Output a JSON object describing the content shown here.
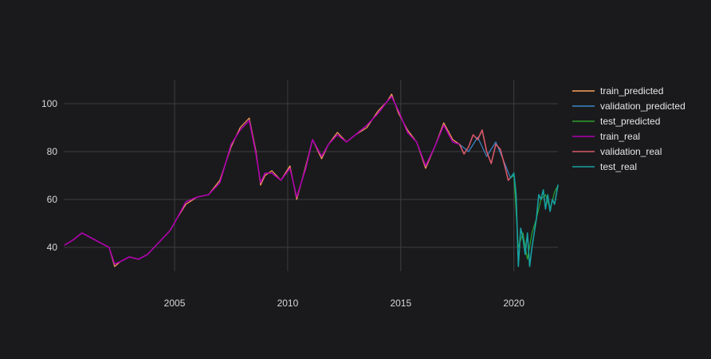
{
  "chart_data": {
    "type": "line",
    "title": "",
    "xlabel": "",
    "ylabel": "",
    "xlim": [
      2000.1,
      2021.95
    ],
    "ylim": [
      30,
      110
    ],
    "x_ticks": [
      2005,
      2010,
      2015,
      2020
    ],
    "x_tick_labels": [
      "2005",
      "2010",
      "2015",
      "2020"
    ],
    "y_ticks": [
      40,
      60,
      80,
      100
    ],
    "y_tick_labels": [
      "40",
      "60",
      "80",
      "100"
    ],
    "grid": true,
    "legend_position": "right",
    "series": [
      {
        "name": "train_predicted",
        "color": "#ffa15a",
        "x": [
          2000.15,
          2000.5,
          2000.9,
          2001.3,
          2001.7,
          2002.1,
          2002.35,
          2002.6,
          2003.0,
          2003.4,
          2003.8,
          2004.3,
          2004.8,
          2005.1,
          2005.5,
          2006.0,
          2006.5,
          2007.0,
          2007.5,
          2007.9,
          2008.3,
          2008.6,
          2008.8,
          2009.0,
          2009.3,
          2009.7,
          2010.1,
          2010.4,
          2010.8,
          2011.1,
          2011.5,
          2011.8,
          2012.2,
          2012.6,
          2013.0,
          2013.5,
          2014.0,
          2014.4,
          2014.6,
          2014.9,
          2015.3,
          2015.7,
          2016.1,
          2016.5,
          2016.9,
          2017.3,
          2017.6
        ],
        "values": [
          41,
          43,
          46,
          44,
          42,
          40,
          32,
          34,
          36,
          35,
          37,
          42,
          47,
          52,
          58,
          61,
          62,
          68,
          82,
          90,
          94,
          80,
          66,
          70,
          72,
          68,
          74,
          60,
          74,
          85,
          77,
          83,
          88,
          84,
          87,
          90,
          97,
          101,
          104,
          96,
          89,
          84,
          73,
          82,
          92,
          85,
          83
        ]
      },
      {
        "name": "validation_predicted",
        "color": "#3a86c8",
        "x": [
          2017.6,
          2018.0,
          2018.4,
          2018.8,
          2019.2,
          2019.6,
          2019.85
        ],
        "values": [
          83,
          80,
          86,
          78,
          84,
          75,
          69
        ]
      },
      {
        "name": "test_predicted",
        "color": "#2ca02c",
        "x": [
          2019.85,
          2020.0,
          2020.2,
          2020.4,
          2020.6,
          2020.8,
          2021.0,
          2021.2,
          2021.4,
          2021.6,
          2021.8,
          2021.9
        ],
        "values": [
          69,
          70,
          40,
          46,
          35,
          46,
          52,
          60,
          62,
          56,
          63,
          65
        ]
      },
      {
        "name": "train_real",
        "color": "#b000b0",
        "x": [
          2000.15,
          2000.5,
          2000.9,
          2001.3,
          2001.7,
          2002.1,
          2002.35,
          2002.6,
          2003.0,
          2003.4,
          2003.8,
          2004.3,
          2004.8,
          2005.1,
          2005.5,
          2006.0,
          2006.5,
          2007.0,
          2007.5,
          2007.9,
          2008.3,
          2008.6,
          2008.8,
          2009.0,
          2009.3,
          2009.7,
          2010.1,
          2010.4,
          2010.8,
          2011.1,
          2011.5,
          2011.8,
          2012.2,
          2012.6,
          2013.0,
          2013.5,
          2014.0,
          2014.4,
          2014.6,
          2014.9,
          2015.3,
          2015.7,
          2016.1,
          2016.5,
          2016.9,
          2017.3,
          2017.6
        ],
        "values": [
          41,
          43,
          46,
          44,
          42,
          40,
          33,
          34,
          36,
          35,
          37,
          42,
          47,
          52,
          59,
          61,
          62,
          67,
          83,
          89,
          93,
          79,
          67,
          71,
          71,
          68,
          73,
          61,
          73,
          85,
          78,
          83,
          87,
          84,
          87,
          91,
          96,
          101,
          103,
          97,
          88,
          84,
          74,
          82,
          91,
          84,
          83
        ]
      },
      {
        "name": "validation_real",
        "color": "#d9596b",
        "x": [
          2017.6,
          2017.8,
          2018.0,
          2018.2,
          2018.4,
          2018.6,
          2018.8,
          2019.0,
          2019.2,
          2019.4,
          2019.6,
          2019.75,
          2019.85
        ],
        "values": [
          83,
          79,
          82,
          87,
          85,
          89,
          80,
          75,
          83,
          81,
          74,
          68,
          69
        ]
      },
      {
        "name": "test_real",
        "color": "#17a0a0",
        "x": [
          2019.85,
          2020.0,
          2020.1,
          2020.2,
          2020.3,
          2020.4,
          2020.5,
          2020.6,
          2020.7,
          2020.8,
          2020.9,
          2021.0,
          2021.1,
          2021.2,
          2021.3,
          2021.4,
          2021.5,
          2021.6,
          2021.7,
          2021.8,
          2021.95
        ],
        "values": [
          69,
          71,
          62,
          32,
          48,
          44,
          37,
          46,
          32,
          40,
          46,
          52,
          62,
          60,
          64,
          56,
          62,
          55,
          60,
          58,
          66
        ]
      }
    ]
  }
}
